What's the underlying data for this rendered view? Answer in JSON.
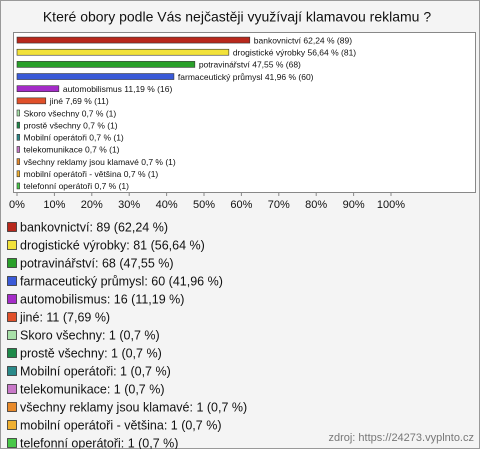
{
  "chart_data": {
    "type": "hbar",
    "title": "Které obory podle Vás nejčastěji využívají klamavou reklamu ?",
    "values": [
      62.24,
      56.64,
      47.55,
      41.96,
      11.19,
      7.69,
      0.7,
      0.7,
      0.7,
      0.7,
      0.7,
      0.7,
      0.7
    ],
    "value_labels": [
      "bankovnictví 62,24 % (89)",
      "drogistické výrobky 56,64 % (81)",
      "potravinářství 47,55 % (68)",
      "farmaceutický průmysl 41,96 % (60)",
      "automobilismus 11,19 % (16)",
      "jiné 7,69 % (11)",
      "Skoro všechny 0,7 % (1)",
      "prostě všechny 0,7 % (1)",
      "Mobilní operátoři 0,7 % (1)",
      "telekomunikace 0,7 % (1)",
      "všechny reklamy jsou klamavé 0,7 % (1)",
      "mobilní operátoři - většina 0,7 % (1)",
      "telefonní operátoři 0,7 % (1)"
    ],
    "legend_labels": [
      "bankovnictví: 89 (62,24 %)",
      "drogistické výrobky: 81 (56,64 %)",
      "potravinářství: 68 (47,55 %)",
      "farmaceutický průmysl: 60 (41,96 %)",
      "automobilismus: 16 (11,19 %)",
      "jiné: 11 (7,69 %)",
      "Skoro všechny: 1 (0,7 %)",
      "prostě všechny: 1 (0,7 %)",
      "Mobilní operátoři: 1 (0,7 %)",
      "telekomunikace: 1 (0,7 %)",
      "všechny reklamy jsou klamavé: 1 (0,7 %)",
      "mobilní operátoři - většina: 1 (0,7 %)",
      "telefonní operátoři: 1 (0,7 %)"
    ],
    "colors": [
      "#b8281c",
      "#f2e23a",
      "#2aa02a",
      "#3a5ad8",
      "#a42cc8",
      "#e0502a",
      "#a8e0a8",
      "#1e8a4a",
      "#2a8a8a",
      "#c878c8",
      "#e88a2a",
      "#f0b030",
      "#48c848"
    ],
    "xlim": [
      0,
      100
    ],
    "xticks": [
      {
        "value": 0,
        "label": "0%"
      },
      {
        "value": 10,
        "label": "10%"
      },
      {
        "value": 20,
        "label": "20%"
      },
      {
        "value": 30,
        "label": "30%"
      },
      {
        "value": 40,
        "label": "40%"
      },
      {
        "value": 50,
        "label": "50%"
      },
      {
        "value": 60,
        "label": "60%"
      },
      {
        "value": 70,
        "label": "70%"
      },
      {
        "value": 80,
        "label": "80%"
      },
      {
        "value": 90,
        "label": "90%"
      },
      {
        "value": 100,
        "label": "100%"
      }
    ],
    "source": "zdroj: https://24273.vyplnto.cz"
  }
}
